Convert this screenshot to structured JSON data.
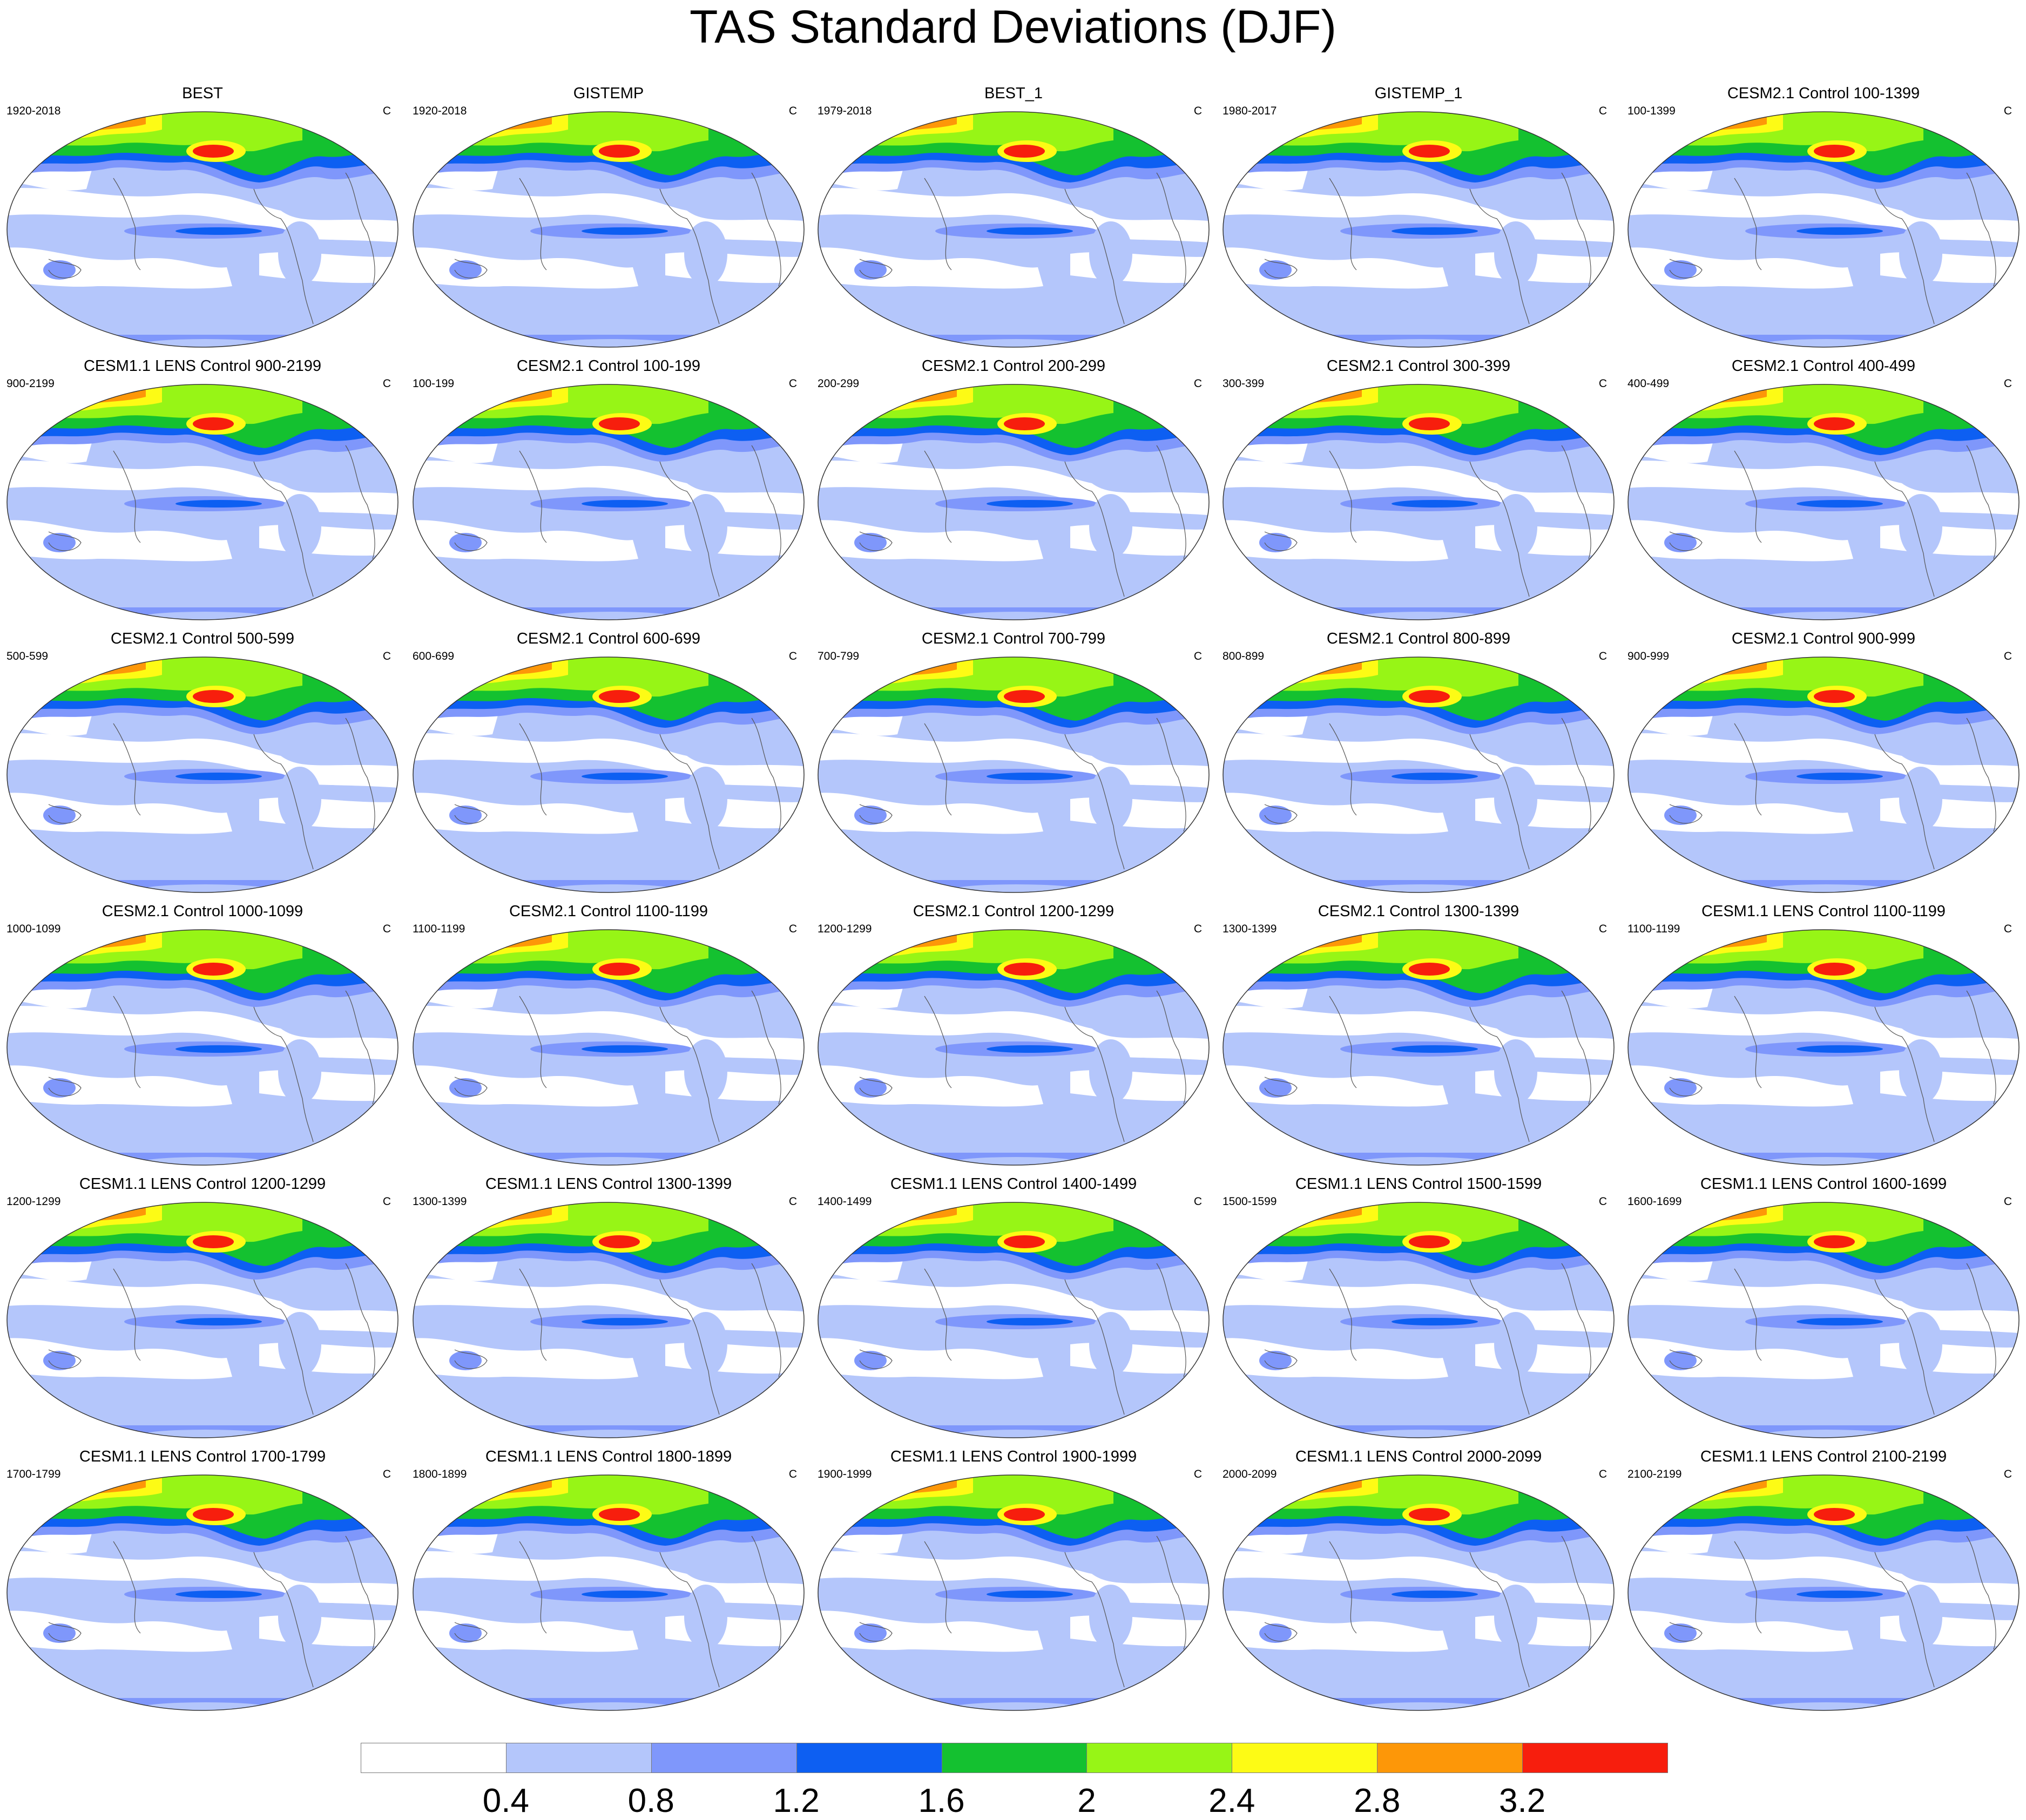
{
  "title": "TAS Standard Deviations (DJF)",
  "unit": "C",
  "panels": [
    {
      "title": "BEST",
      "years": "1920-2018"
    },
    {
      "title": "GISTEMP",
      "years": "1920-2018"
    },
    {
      "title": "BEST_1",
      "years": "1979-2018"
    },
    {
      "title": "GISTEMP_1",
      "years": "1980-2017"
    },
    {
      "title": "CESM2.1 Control 100-1399",
      "years": "100-1399"
    },
    {
      "title": "CESM1.1 LENS Control 900-2199",
      "years": "900-2199"
    },
    {
      "title": "CESM2.1 Control 100-199",
      "years": "100-199"
    },
    {
      "title": "CESM2.1 Control 200-299",
      "years": "200-299"
    },
    {
      "title": "CESM2.1 Control 300-399",
      "years": "300-399"
    },
    {
      "title": "CESM2.1 Control 400-499",
      "years": "400-499"
    },
    {
      "title": "CESM2.1 Control 500-599",
      "years": "500-599"
    },
    {
      "title": "CESM2.1 Control 600-699",
      "years": "600-699"
    },
    {
      "title": "CESM2.1 Control 700-799",
      "years": "700-799"
    },
    {
      "title": "CESM2.1 Control 800-899",
      "years": "800-899"
    },
    {
      "title": "CESM2.1 Control 900-999",
      "years": "900-999"
    },
    {
      "title": "CESM2.1 Control 1000-1099",
      "years": "1000-1099"
    },
    {
      "title": "CESM2.1 Control 1100-1199",
      "years": "1100-1199"
    },
    {
      "title": "CESM2.1 Control 1200-1299",
      "years": "1200-1299"
    },
    {
      "title": "CESM2.1 Control 1300-1399",
      "years": "1300-1399"
    },
    {
      "title": "CESM1.1 LENS Control 1100-1199",
      "years": "1100-1199"
    },
    {
      "title": "CESM1.1 LENS Control 1200-1299",
      "years": "1200-1299"
    },
    {
      "title": "CESM1.1 LENS Control 1300-1399",
      "years": "1300-1399"
    },
    {
      "title": "CESM1.1 LENS Control 1400-1499",
      "years": "1400-1499"
    },
    {
      "title": "CESM1.1 LENS Control 1500-1599",
      "years": "1500-1599"
    },
    {
      "title": "CESM1.1 LENS Control 1600-1699",
      "years": "1600-1699"
    },
    {
      "title": "CESM1.1 LENS Control 1700-1799",
      "years": "1700-1799"
    },
    {
      "title": "CESM1.1 LENS Control 1800-1899",
      "years": "1800-1899"
    },
    {
      "title": "CESM1.1 LENS Control 1900-1999",
      "years": "1900-1999"
    },
    {
      "title": "CESM1.1 LENS Control 2000-2099",
      "years": "2000-2099"
    },
    {
      "title": "CESM1.1 LENS Control 2100-2199",
      "years": "2100-2199"
    }
  ],
  "colorbar": {
    "labels": [
      "0.4",
      "0.8",
      "1.2",
      "1.6",
      "2",
      "2.4",
      "2.8",
      "3.2"
    ],
    "colors": [
      "#ffffff",
      "#b4c6fb",
      "#7f97fb",
      "#0d5ff2",
      "#14c130",
      "#97f516",
      "#fdfb15",
      "#fd9708",
      "#f71e0d"
    ]
  },
  "palette": {
    "ocean_low": "#b4c6fb",
    "ocean_none": "#ffffff",
    "mid": "#7f97fb",
    "strong": "#0d5ff2",
    "green": "#14c130",
    "lime": "#97f516",
    "yellow": "#fdfb15",
    "orange": "#fd9708",
    "red": "#f71e0d",
    "coast": "#555555"
  }
}
